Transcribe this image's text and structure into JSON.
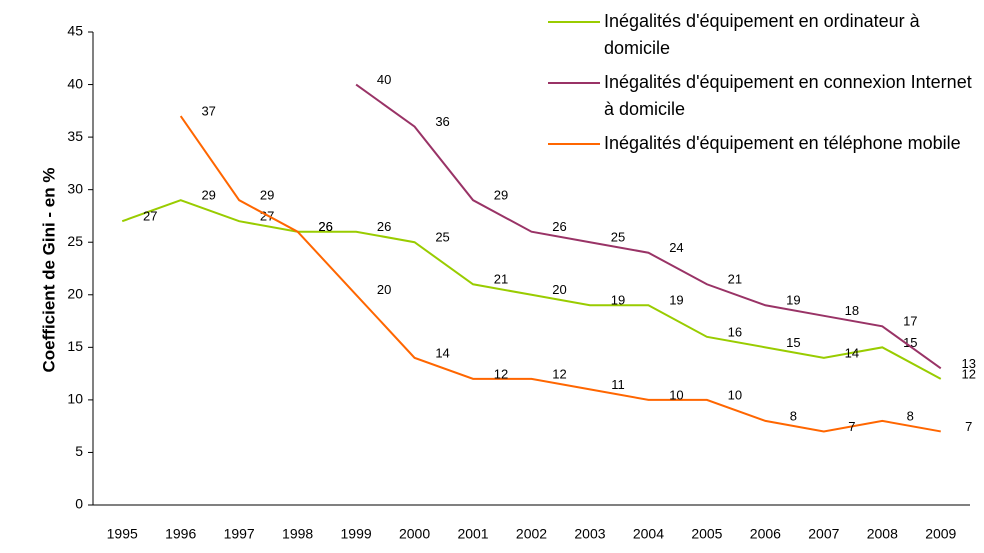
{
  "chart_data": {
    "type": "line",
    "y_label": "Coefficient de Gini - en %",
    "categories": [
      "1995",
      "1996",
      "1997",
      "1998",
      "1999",
      "2000",
      "2001",
      "2002",
      "2003",
      "2004",
      "2005",
      "2006",
      "2007",
      "2008",
      "2009"
    ],
    "series": [
      {
        "name": "Inégalités d'équipement en ordinateur à domicile",
        "color": "#99cc00",
        "values": [
          27,
          29,
          27,
          26,
          26,
          25,
          21,
          20,
          19,
          19,
          16,
          15,
          14,
          15,
          12
        ]
      },
      {
        "name": "Inégalités d'équipement en connexion Internet à domicile",
        "color": "#993366",
        "values": [
          null,
          null,
          null,
          null,
          40,
          36,
          29,
          26,
          25,
          24,
          21,
          19,
          18,
          17,
          13
        ]
      },
      {
        "name": "Inégalités d'équipement en téléphone mobile",
        "color": "#ff6600",
        "values": [
          null,
          37,
          29,
          26,
          20,
          14,
          12,
          12,
          11,
          10,
          10,
          8,
          7,
          8,
          7
        ]
      }
    ],
    "ylim": [
      0,
      45
    ],
    "yticks": [
      0,
      5,
      10,
      15,
      20,
      25,
      30,
      35,
      40,
      45
    ],
    "legend": "top-right"
  }
}
